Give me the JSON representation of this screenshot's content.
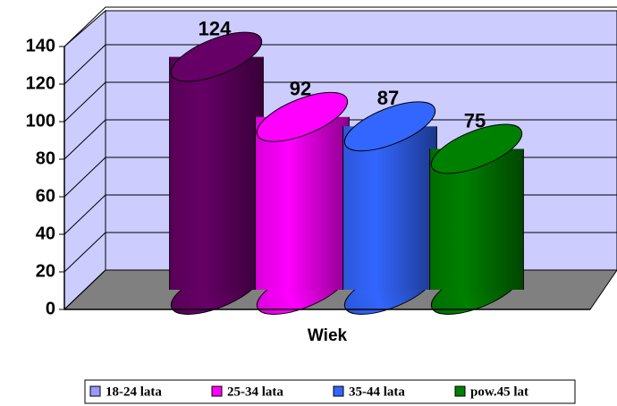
{
  "chart_data": {
    "type": "bar3d",
    "x_label": "Wiek",
    "series": [
      {
        "name": "18-24 lata",
        "color": "#660066",
        "legend_color": "#9999ff",
        "values": [
          124
        ]
      },
      {
        "name": "25-34 lata",
        "color": "#ff00ff",
        "legend_color": "#ff00ff",
        "values": [
          92
        ]
      },
      {
        "name": "35-44 lata",
        "color": "#3366ff",
        "legend_color": "#3366ff",
        "values": [
          87
        ]
      },
      {
        "name": "pow.45 lat",
        "color": "#008000",
        "legend_color": "#008000",
        "values": [
          75
        ]
      }
    ],
    "ylim": [
      0,
      140
    ],
    "yticks": [
      0,
      20,
      40,
      60,
      80,
      100,
      120,
      140
    ],
    "grid": true,
    "legend": "bottom"
  }
}
